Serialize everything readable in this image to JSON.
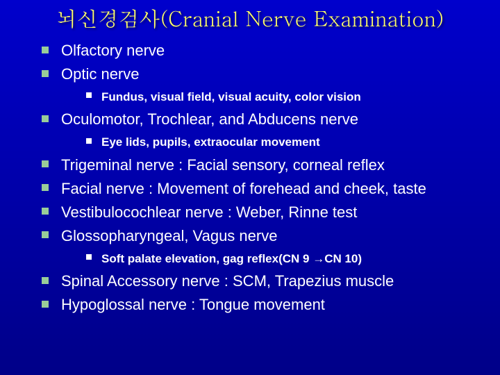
{
  "title": "뇌신경검사(Cranial Nerve Examination)",
  "colors": {
    "bg_top": "#0000cc",
    "bg_bottom": "#000088",
    "title": "#ffff66",
    "body_text": "#ffffff",
    "bullet_lvl1": "#99cc99",
    "bullet_lvl2": "#ffffff"
  },
  "typography": {
    "title_fontsize": 30,
    "lvl1_fontsize": 22,
    "lvl2_fontsize": 17,
    "lvl2_weight": "bold",
    "title_font": "Batang / Times serif",
    "body_font": "Arial"
  },
  "items": [
    {
      "text": "Olfactory nerve"
    },
    {
      "text": "Optic nerve",
      "sub": [
        "Fundus, visual field, visual acuity, color vision"
      ]
    },
    {
      "text": "Oculomotor, Trochlear, and Abducens nerve",
      "sub": [
        "Eye lids, pupils, extraocular movement"
      ]
    },
    {
      "text": "Trigeminal nerve : Facial sensory, corneal reflex"
    },
    {
      "text": "Facial nerve : Movement of forehead and cheek, taste"
    },
    {
      "text": "Vestibulocochlear nerve : Weber, Rinne test"
    },
    {
      "text": "Glossopharyngeal, Vagus nerve",
      "sub": [
        "Soft palate elevation, gag reflex(CN 9 →CN 10)"
      ]
    },
    {
      "text": "Spinal Accessory nerve : SCM, Trapezius muscle"
    },
    {
      "text": "Hypoglossal nerve : Tongue movement"
    }
  ]
}
